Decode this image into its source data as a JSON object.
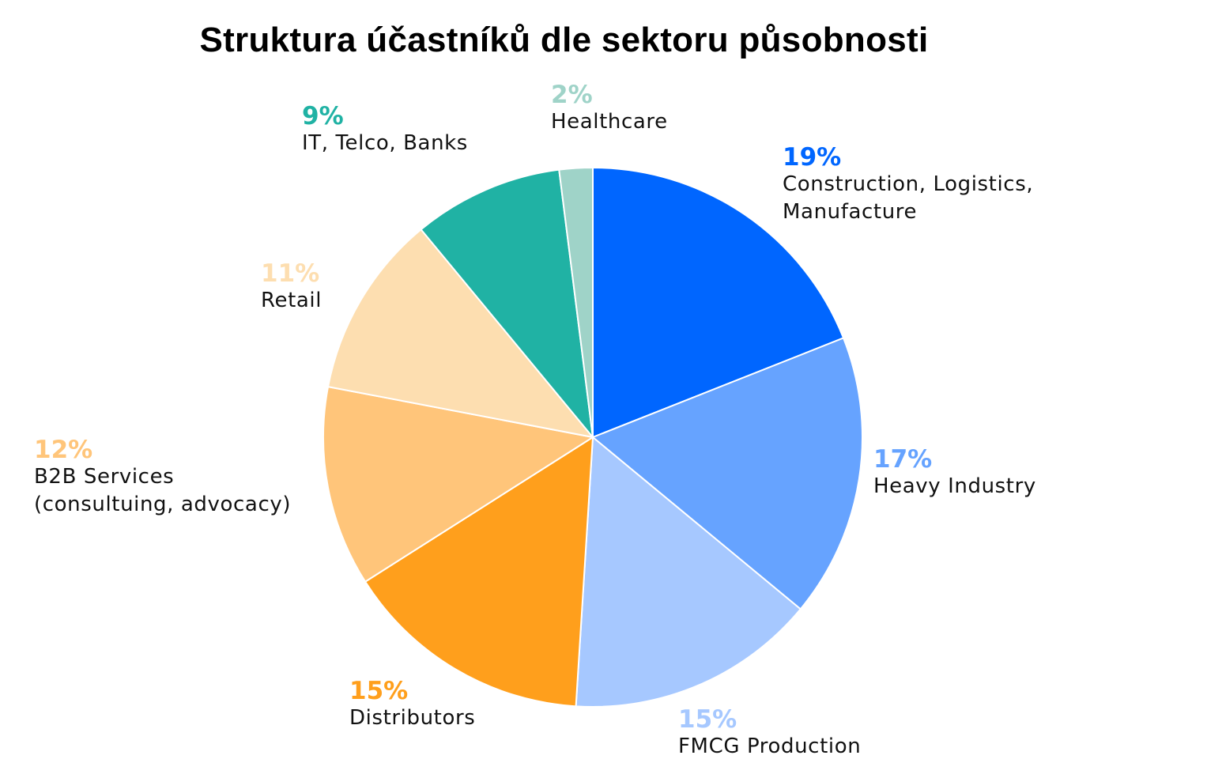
{
  "chart_data": {
    "type": "pie",
    "title": "Struktura účastníků dle sektoru působnosti",
    "slices": [
      {
        "name": "Construction, Logistics, Manufacture",
        "name_lines": [
          "Construction, Logistics,",
          "Manufacture"
        ],
        "value": 19,
        "value_label": "19%",
        "color": "#0066ff"
      },
      {
        "name": "Heavy Industry",
        "name_lines": [
          "Heavy Industry"
        ],
        "value": 17,
        "value_label": "17%",
        "color": "#66a3ff"
      },
      {
        "name": "FMCG Production",
        "name_lines": [
          "FMCG Production"
        ],
        "value": 15,
        "value_label": "15%",
        "color": "#a6c8ff"
      },
      {
        "name": "Distributors",
        "name_lines": [
          "Distributors"
        ],
        "value": 15,
        "value_label": "15%",
        "color": "#ff9f1c"
      },
      {
        "name": "B2B Services (consultuing, advocacy)",
        "name_lines": [
          "B2B Services",
          "(consultuing, advocacy)"
        ],
        "value": 12,
        "value_label": "12%",
        "color": "#ffc57a"
      },
      {
        "name": "Retail",
        "name_lines": [
          "Retail"
        ],
        "value": 11,
        "value_label": "11%",
        "color": "#fddeb0"
      },
      {
        "name": "IT, Telco, Banks",
        "name_lines": [
          "IT, Telco, Banks"
        ],
        "value": 9,
        "value_label": "9%",
        "color": "#20b2a4"
      },
      {
        "name": "Healthcare",
        "name_lines": [
          "Healthcare"
        ],
        "value": 2,
        "value_label": "2%",
        "color": "#9fd3c8"
      }
    ],
    "start": "12 o'clock",
    "direction": "clockwise",
    "legend": "none"
  }
}
